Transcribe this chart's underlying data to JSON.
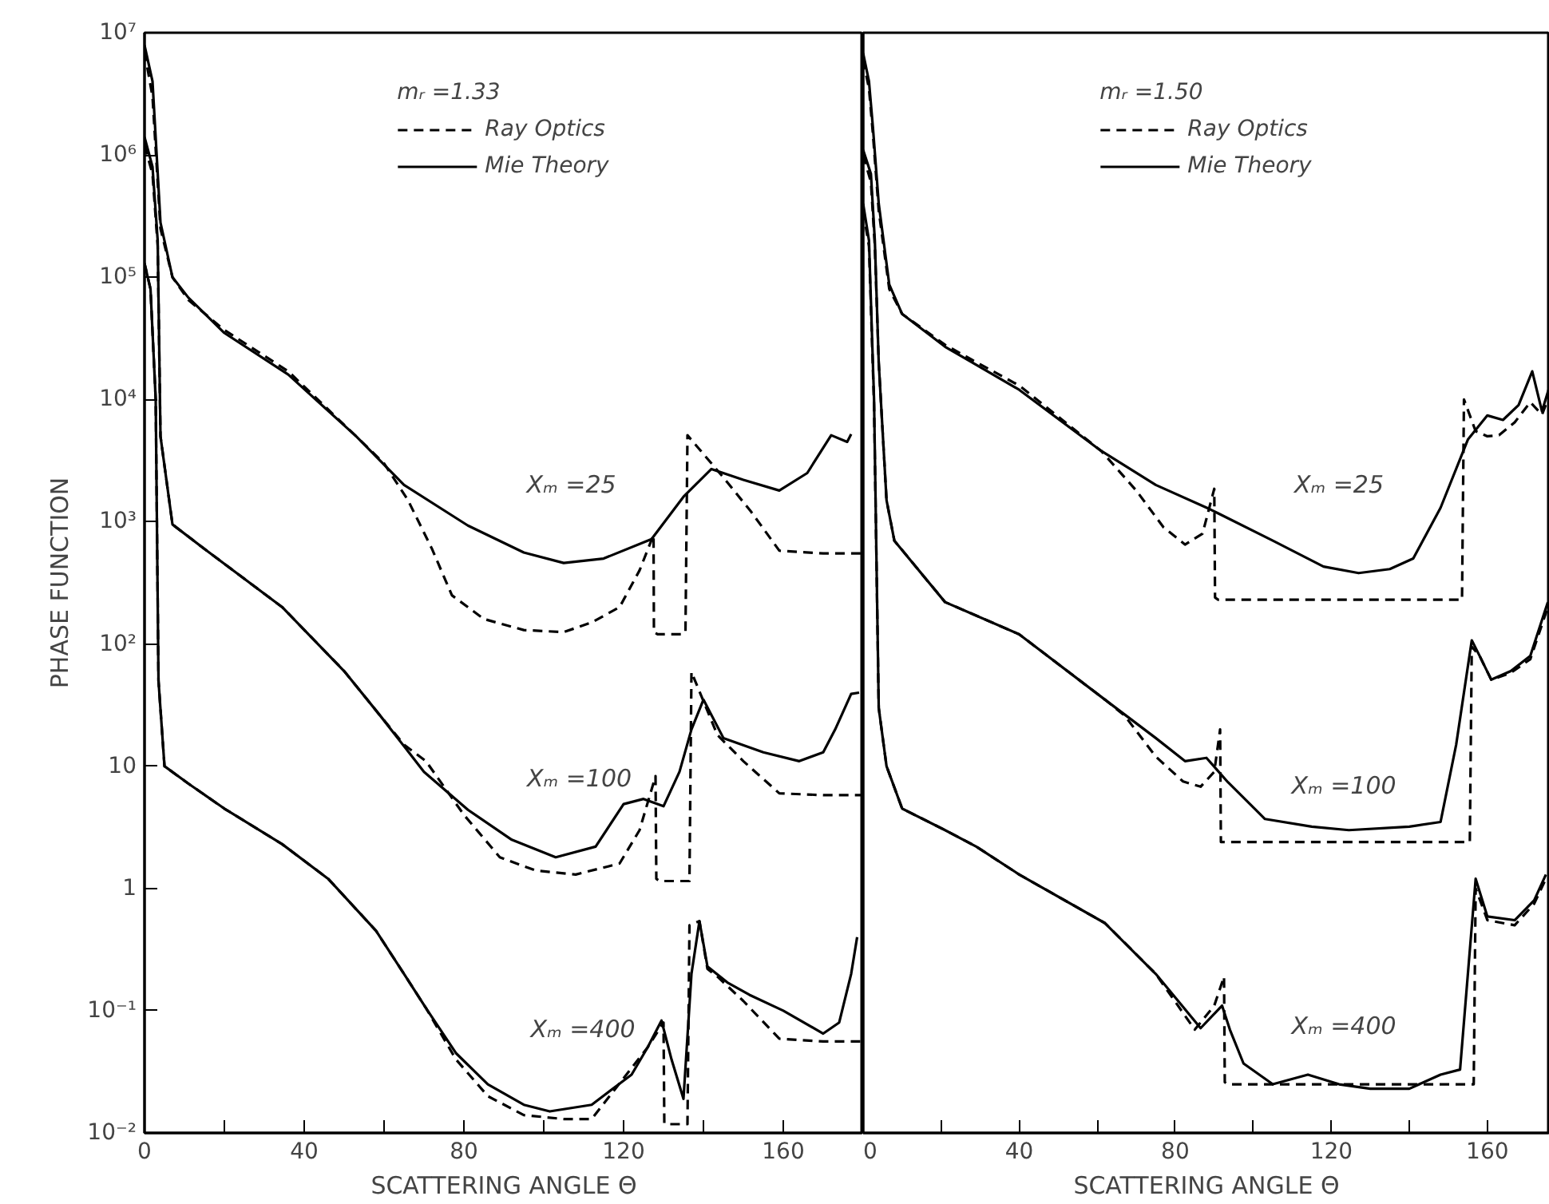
{
  "chart_data": [
    {
      "type": "line",
      "xlabel": "SCATTERING ANGLE Θ",
      "ylabel": "PHASE FUNCTION",
      "log": "y",
      "grid": false,
      "legend": "top",
      "legend_title": "mᵣ =1.33",
      "marker": "none",
      "xlim": [
        0,
        180
      ],
      "ylim": [
        0.01,
        10000000
      ],
      "xticks": [
        0,
        {
          "value": 20,
          "label": null
        },
        40,
        {
          "value": 60,
          "label": null
        },
        80,
        {
          "value": 100,
          "label": null
        },
        120,
        {
          "value": 140,
          "label": null
        },
        160,
        {
          "value": 180,
          "label": null
        }
      ],
      "yticks": [
        {
          "value": 0.01,
          "label": "10⁻²"
        },
        {
          "value": 0.1,
          "label": "10⁻¹"
        },
        1,
        10,
        {
          "value": 100,
          "label": "10²"
        },
        {
          "value": 1000,
          "label": "10³"
        },
        {
          "value": 10000,
          "label": "10⁴"
        },
        {
          "value": 100000,
          "label": "10⁵"
        },
        {
          "value": 1000000,
          "label": "10⁶"
        },
        {
          "value": 10000000,
          "label": "10⁷"
        }
      ],
      "annotations": [
        "Xₘ =25",
        "Xₘ =100",
        "Xₘ =400"
      ],
      "series": [
        {
          "name": "Ray Optics",
          "color": "#000000",
          "line_style": "dashed",
          "x": [
            0,
            2,
            4,
            7,
            11,
            20,
            36,
            53,
            60,
            66,
            72,
            77,
            85,
            95,
            105,
            112,
            119,
            124,
            127.5,
            127.6,
            128.5,
            134.5,
            135.5,
            136,
            145,
            152,
            159,
            170,
            180
          ],
          "values": [
            7000000,
            3000000,
            250000,
            100000,
            65000,
            37000,
            17000,
            5000,
            3000,
            1500,
            600,
            250,
            160,
            130,
            125,
            150,
            200,
            400,
            780,
            125,
            120,
            120,
            125,
            5100,
            2300,
            1200,
            580,
            550,
            550
          ]
        },
        {
          "name": "Mie Theory",
          "color": "#000000",
          "line_style": "solid",
          "x": [
            0,
            2,
            4,
            7,
            11,
            20,
            36,
            53,
            65,
            81,
            95,
            105,
            115,
            127,
            135,
            142,
            150,
            159,
            166,
            172,
            176,
            177
          ],
          "values": [
            7900000,
            4000000,
            280000,
            100000,
            68000,
            35000,
            16000,
            5000,
            2000,
            930,
            560,
            460,
            500,
            720,
            1600,
            2700,
            2200,
            1800,
            2500,
            5100,
            4500,
            5200
          ]
        },
        {
          "color": "#000000",
          "line_style": "dashed",
          "x": [
            0,
            2,
            3.3,
            4,
            7,
            15,
            34.5,
            50,
            59,
            65,
            70.5,
            80,
            89,
            98,
            108,
            119,
            124,
            128,
            128.2,
            129,
            136.5,
            137,
            143.5,
            150,
            159,
            170,
            180
          ],
          "values": [
            1200000,
            700000,
            180000,
            5000,
            950,
            600,
            200,
            60,
            26,
            15,
            11,
            4,
            1.8,
            1.4,
            1.3,
            1.6,
            3,
            8.3,
            1.2,
            1.15,
            1.15,
            59,
            18,
            11,
            6,
            5.8,
            5.8
          ]
        },
        {
          "color": "#000000",
          "line_style": "solid",
          "x": [
            0,
            2,
            3.3,
            4,
            7,
            15,
            34.5,
            50,
            59,
            70,
            81,
            92,
            103,
            113,
            120,
            125,
            130,
            134,
            137,
            140,
            145,
            155,
            164,
            170,
            173,
            177,
            179
          ],
          "values": [
            1400000,
            800000,
            200000,
            5000,
            950,
            600,
            200,
            60,
            26,
            9,
            4.4,
            2.5,
            1.8,
            2.2,
            4.9,
            5.4,
            4.7,
            9,
            20,
            35,
            17,
            13,
            11,
            13,
            20,
            39,
            40
          ]
        },
        {
          "color": "#000000",
          "line_style": "dashed",
          "x": [
            0,
            1.5,
            2.8,
            3.5,
            5,
            11,
            20,
            34.5,
            46,
            58,
            65,
            70.5,
            78,
            86,
            95,
            105,
            112,
            120,
            126,
            130,
            130.2,
            131,
            136,
            136.5,
            139,
            141,
            143.5,
            150,
            159,
            170,
            180
          ],
          "values": [
            130000,
            80000,
            10000,
            50,
            10,
            7.2,
            4.5,
            2.3,
            1.2,
            0.45,
            0.2,
            0.105,
            0.04,
            0.02,
            0.014,
            0.013,
            0.013,
            0.028,
            0.05,
            0.08,
            0.012,
            0.0118,
            0.0118,
            0.5,
            0.54,
            0.22,
            0.19,
            0.12,
            0.059,
            0.056,
            0.056
          ]
        },
        {
          "color": "#000000",
          "line_style": "solid",
          "x": [
            0,
            1.5,
            2.8,
            3.5,
            5,
            11,
            20,
            34.5,
            46,
            58,
            65,
            70.5,
            78,
            86,
            95,
            101.5,
            112,
            122,
            126,
            129.5,
            132,
            135,
            137,
            139,
            141,
            146,
            151.5,
            160,
            170,
            174,
            177,
            178.5
          ],
          "values": [
            130000,
            80000,
            10000,
            50,
            10,
            7.2,
            4.5,
            2.3,
            1.2,
            0.45,
            0.2,
            0.105,
            0.045,
            0.025,
            0.017,
            0.015,
            0.017,
            0.03,
            0.05,
            0.083,
            0.04,
            0.019,
            0.2,
            0.54,
            0.23,
            0.17,
            0.135,
            0.1,
            0.065,
            0.08,
            0.2,
            0.4
          ]
        }
      ]
    },
    {
      "type": "line",
      "xlabel": "SCATTERING ANGLE Θ",
      "log": "y",
      "grid": false,
      "legend": "top",
      "legend_title": "mᵣ =1.50",
      "marker": "none",
      "tick_labels": "x",
      "xlim": [
        0,
        176
      ],
      "ylim": [
        0.01,
        10000000
      ],
      "xticks": [
        0,
        {
          "value": 20,
          "label": null
        },
        40,
        {
          "value": 60,
          "label": null
        },
        80,
        {
          "value": 100,
          "label": null
        },
        120,
        {
          "value": 140,
          "label": null
        },
        160
      ],
      "yticks": [
        0.01,
        0.1,
        1,
        10,
        100,
        1000,
        10000,
        100000,
        1000000,
        10000000
      ],
      "annotations": [
        "Xₘ =25",
        "Xₘ =100",
        "Xₘ =400"
      ],
      "series": [
        {
          "name": "Ray Optics",
          "color": "#000000",
          "line_style": "dashed",
          "x": [
            0,
            1.5,
            2.5,
            4,
            6.7,
            10,
            21,
            28,
            40,
            61,
            70,
            77,
            82.5,
            87,
            90,
            90.2,
            91,
            153.5,
            154,
            157,
            160,
            163,
            167,
            171,
            174,
            176
          ],
          "values": [
            6000000,
            3500000,
            1500000,
            350000,
            80000,
            50000,
            28000,
            21000,
            13000,
            3800,
            1800,
            900,
            650,
            800,
            1860,
            240,
            230,
            230,
            10000,
            5500,
            5000,
            5100,
            6500,
            9500,
            7500,
            11000
          ]
        },
        {
          "name": "Mie Theory",
          "color": "#000000",
          "line_style": "solid",
          "x": [
            0,
            1.5,
            2.5,
            4,
            6.7,
            10,
            21,
            28,
            40,
            61,
            75,
            89,
            105,
            118,
            127,
            135,
            141,
            148,
            155,
            160,
            164,
            168,
            171.5,
            174,
            176
          ],
          "values": [
            6800000,
            4000000,
            1700000,
            400000,
            87000,
            50000,
            27000,
            20000,
            12000,
            3800,
            2000,
            1260,
            700,
            430,
            380,
            410,
            500,
            1300,
            4700,
            7400,
            6800,
            9000,
            17000,
            8000,
            13000
          ]
        },
        {
          "color": "#000000",
          "line_style": "dashed",
          "x": [
            0,
            2,
            3,
            4,
            6,
            8,
            21,
            40,
            62,
            67,
            75,
            82,
            86.5,
            90,
            91.5,
            91.7,
            92.5,
            155.5,
            156,
            158,
            161,
            166,
            171,
            175.5
          ],
          "values": [
            1000000,
            600000,
            180000,
            20000,
            1500,
            700,
            220,
            120,
            35,
            26,
            12,
            7.5,
            6.8,
            9,
            20,
            2.4,
            2.4,
            2.4,
            95,
            80,
            51,
            58,
            75,
            200
          ]
        },
        {
          "color": "#000000",
          "line_style": "solid",
          "x": [
            0,
            2,
            3,
            4,
            6,
            8,
            21,
            40,
            62,
            75,
            82.5,
            88,
            93.5,
            103,
            115,
            124.5,
            140,
            148,
            152,
            156,
            158,
            161,
            166,
            171,
            175.5
          ],
          "values": [
            1100000,
            700000,
            200000,
            20000,
            1500,
            700,
            220,
            120,
            35,
            17,
            11,
            11.7,
            7.4,
            3.7,
            3.2,
            3,
            3.2,
            3.5,
            15,
            107,
            80,
            51,
            60,
            80,
            220
          ]
        },
        {
          "color": "#000000",
          "line_style": "dashed",
          "x": [
            0,
            1.5,
            2.8,
            4,
            6,
            10,
            21,
            29,
            40,
            62,
            75,
            85,
            90,
            92.5,
            92.7,
            93.5,
            156.5,
            157,
            160,
            167,
            172,
            175
          ],
          "values": [
            350000,
            180000,
            9000,
            30,
            10,
            4.5,
            3,
            2.2,
            1.3,
            0.52,
            0.2,
            0.07,
            0.11,
            0.19,
            0.026,
            0.025,
            0.025,
            1.0,
            0.55,
            0.5,
            0.75,
            1.2
          ]
        },
        {
          "color": "#000000",
          "line_style": "solid",
          "x": [
            0,
            1.5,
            2.8,
            4,
            6,
            10,
            21,
            29,
            40,
            62,
            75,
            86.5,
            92,
            94,
            97.5,
            105,
            114,
            122,
            130,
            140,
            148,
            153,
            157,
            160,
            167,
            172,
            175
          ],
          "values": [
            400000,
            200000,
            10000,
            30,
            10,
            4.5,
            3,
            2.2,
            1.3,
            0.52,
            0.2,
            0.072,
            0.11,
            0.07,
            0.037,
            0.025,
            0.03,
            0.025,
            0.023,
            0.023,
            0.03,
            0.033,
            1.2,
            0.59,
            0.55,
            0.8,
            1.3
          ]
        }
      ]
    }
  ]
}
